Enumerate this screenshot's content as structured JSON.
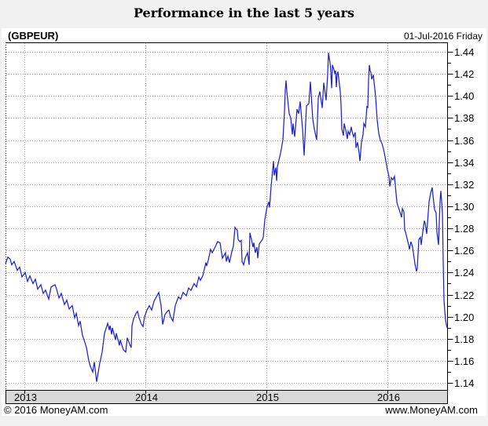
{
  "page": {
    "title": "Performance in the last 5 years"
  },
  "header": {
    "symbol": "(GBPEUR)",
    "date": "01-Jul-2016 Friday"
  },
  "footer": {
    "left": "© 2016 MoneyAM.com",
    "right": "www.MoneyAM.com"
  },
  "colors": {
    "line": "#2222cc",
    "grid": "#a0a0a0",
    "band_bg": "#d8d8d8",
    "frame": "#000000",
    "chart_bg": "#ffffff",
    "page_bg": "#f1f1f1",
    "text": "#000000"
  },
  "chart_data": {
    "type": "line",
    "title": "Performance in the last 5 years",
    "series_name": "GBPEUR exchange rate",
    "x_tick_labels": [
      "2013",
      "2014",
      "2015",
      "2016"
    ],
    "x_ticks": [
      2013,
      2014,
      2015,
      2016
    ],
    "y_ticks": [
      1.14,
      1.16,
      1.18,
      1.2,
      1.22,
      1.24,
      1.26,
      1.28,
      1.3,
      1.32,
      1.34,
      1.36,
      1.38,
      1.4,
      1.42,
      1.44
    ],
    "y_minor_step": 0.01,
    "x_range": [
      2012.8442,
      2016.5
    ],
    "y_range": [
      1.1337,
      1.4485
    ],
    "grid": "dotted",
    "y_axis_side": "right",
    "legend": "none",
    "points": [
      [
        2012.8442,
        1.248
      ],
      [
        2012.8636,
        1.254
      ],
      [
        2012.8831,
        1.252
      ],
      [
        2012.8961,
        1.247
      ],
      [
        2012.9156,
        1.25
      ],
      [
        2012.9416,
        1.242
      ],
      [
        2012.961,
        1.245
      ],
      [
        2012.9805,
        1.236
      ],
      [
        2013.0065,
        1.24
      ],
      [
        2013.026,
        1.232
      ],
      [
        2013.0455,
        1.237
      ],
      [
        2013.0714,
        1.23
      ],
      [
        2013.0909,
        1.234
      ],
      [
        2013.1104,
        1.225
      ],
      [
        2013.1364,
        1.229
      ],
      [
        2013.1558,
        1.221
      ],
      [
        2013.1753,
        1.224
      ],
      [
        2013.2013,
        1.216
      ],
      [
        2013.2208,
        1.227
      ],
      [
        2013.2532,
        1.229
      ],
      [
        2013.2662,
        1.225
      ],
      [
        2013.2857,
        1.217
      ],
      [
        2013.3052,
        1.221
      ],
      [
        2013.3312,
        1.211
      ],
      [
        2013.3506,
        1.215
      ],
      [
        2013.3701,
        1.207
      ],
      [
        2013.3961,
        1.21
      ],
      [
        2013.4156,
        1.199
      ],
      [
        2013.4286,
        1.203
      ],
      [
        2013.4481,
        1.192
      ],
      [
        2013.461,
        1.196
      ],
      [
        2013.4805,
        1.183
      ],
      [
        2013.4935,
        1.179
      ],
      [
        2013.513,
        1.172
      ],
      [
        2013.5325,
        1.16
      ],
      [
        2013.5455,
        1.155
      ],
      [
        2013.5649,
        1.15
      ],
      [
        2013.5779,
        1.159
      ],
      [
        2013.5974,
        1.141
      ],
      [
        2013.6104,
        1.15
      ],
      [
        2013.6234,
        1.158
      ],
      [
        2013.6429,
        1.168
      ],
      [
        2013.6623,
        1.185
      ],
      [
        2013.6883,
        1.194
      ],
      [
        2013.7013,
        1.188
      ],
      [
        2013.7078,
        1.192
      ],
      [
        2013.7208,
        1.184
      ],
      [
        2013.7273,
        1.19
      ],
      [
        2013.7532,
        1.179
      ],
      [
        2013.7597,
        1.185
      ],
      [
        2013.7857,
        1.174
      ],
      [
        2013.7922,
        1.179
      ],
      [
        2013.8182,
        1.17
      ],
      [
        2013.8377,
        1.168
      ],
      [
        2013.8506,
        1.181
      ],
      [
        2013.8701,
        1.175
      ],
      [
        2013.8831,
        1.172
      ],
      [
        2013.8896,
        1.192
      ],
      [
        2013.9026,
        1.198
      ],
      [
        2013.9221,
        1.203
      ],
      [
        2013.9351,
        1.205
      ],
      [
        2013.9481,
        1.199
      ],
      [
        2013.9675,
        1.193
      ],
      [
        2013.9805,
        1.191
      ],
      [
        2013.9935,
        1.2
      ],
      [
        2014.013,
        1.206
      ],
      [
        2014.0325,
        1.21
      ],
      [
        2014.0519,
        1.206
      ],
      [
        2014.0714,
        1.214
      ],
      [
        2014.0909,
        1.218
      ],
      [
        2014.1104,
        1.222
      ],
      [
        2014.1299,
        1.21
      ],
      [
        2014.1429,
        1.193
      ],
      [
        2014.1623,
        1.202
      ],
      [
        2014.1818,
        1.205
      ],
      [
        2014.1948,
        1.206
      ],
      [
        2014.2078,
        1.2
      ],
      [
        2014.2273,
        1.196
      ],
      [
        2014.2468,
        1.21
      ],
      [
        2014.2727,
        1.218
      ],
      [
        2014.2922,
        1.216
      ],
      [
        2014.3117,
        1.222
      ],
      [
        2014.3377,
        1.219
      ],
      [
        2014.3571,
        1.226
      ],
      [
        2014.3766,
        1.224
      ],
      [
        2014.4026,
        1.23
      ],
      [
        2014.4221,
        1.227
      ],
      [
        2014.4416,
        1.236
      ],
      [
        2014.4545,
        1.233
      ],
      [
        2014.474,
        1.237
      ],
      [
        2014.5,
        1.249
      ],
      [
        2014.5065,
        1.246
      ],
      [
        2014.5195,
        1.251
      ],
      [
        2014.539,
        1.261
      ],
      [
        2014.5519,
        1.258
      ],
      [
        2014.5714,
        1.262
      ],
      [
        2014.5974,
        1.268
      ],
      [
        2014.6169,
        1.267
      ],
      [
        2014.6364,
        1.253
      ],
      [
        2014.6623,
        1.258
      ],
      [
        2014.6688,
        1.25
      ],
      [
        2014.6818,
        1.255
      ],
      [
        2014.6948,
        1.249
      ],
      [
        2014.7143,
        1.259
      ],
      [
        2014.7273,
        1.264
      ],
      [
        2014.7403,
        1.281
      ],
      [
        2014.7597,
        1.278
      ],
      [
        2014.7662,
        1.27
      ],
      [
        2014.7792,
        1.268
      ],
      [
        2014.7922,
        1.269
      ],
      [
        2014.7987,
        1.25
      ],
      [
        2014.8117,
        1.247
      ],
      [
        2014.8247,
        1.253
      ],
      [
        2014.8442,
        1.258
      ],
      [
        2014.8571,
        1.247
      ],
      [
        2014.8636,
        1.276
      ],
      [
        2014.8766,
        1.27
      ],
      [
        2014.8896,
        1.263
      ],
      [
        2014.8961,
        1.267
      ],
      [
        2014.9091,
        1.258
      ],
      [
        2014.9221,
        1.263
      ],
      [
        2014.9286,
        1.253
      ],
      [
        2014.9416,
        1.266
      ],
      [
        2014.9545,
        1.268
      ],
      [
        2014.9675,
        1.27
      ],
      [
        2014.974,
        1.272
      ],
      [
        2014.9805,
        1.28
      ],
      [
        2014.987,
        1.288
      ],
      [
        2015.0065,
        1.3
      ],
      [
        2015.0195,
        1.304
      ],
      [
        2015.026,
        1.299
      ],
      [
        2015.039,
        1.318
      ],
      [
        2015.0584,
        1.341
      ],
      [
        2015.0649,
        1.328
      ],
      [
        2015.0779,
        1.335
      ],
      [
        2015.0844,
        1.323
      ],
      [
        2015.0909,
        1.336
      ],
      [
        2015.1039,
        1.342
      ],
      [
        2015.1169,
        1.348
      ],
      [
        2015.1364,
        1.36
      ],
      [
        2015.1494,
        1.386
      ],
      [
        2015.1558,
        1.405
      ],
      [
        2015.1623,
        1.414
      ],
      [
        2015.1688,
        1.404
      ],
      [
        2015.1883,
        1.384
      ],
      [
        2015.2013,
        1.38
      ],
      [
        2015.2143,
        1.365
      ],
      [
        2015.2208,
        1.375
      ],
      [
        2015.2338,
        1.363
      ],
      [
        2015.2532,
        1.388
      ],
      [
        2015.2662,
        1.384
      ],
      [
        2015.2792,
        1.395
      ],
      [
        2015.2987,
        1.37
      ],
      [
        2015.3117,
        1.346
      ],
      [
        2015.3312,
        1.391
      ],
      [
        2015.3506,
        1.393
      ],
      [
        2015.3636,
        1.413
      ],
      [
        2015.3831,
        1.379
      ],
      [
        2015.3961,
        1.37
      ],
      [
        2015.4156,
        1.36
      ],
      [
        2015.4286,
        1.398
      ],
      [
        2015.4416,
        1.404
      ],
      [
        2015.461,
        1.389
      ],
      [
        2015.474,
        1.412
      ],
      [
        2015.4935,
        1.396
      ],
      [
        2015.5065,
        1.42
      ],
      [
        2015.513,
        1.439
      ],
      [
        2015.526,
        1.43
      ],
      [
        2015.5325,
        1.421
      ],
      [
        2015.539,
        1.407
      ],
      [
        2015.5455,
        1.428
      ],
      [
        2015.5584,
        1.424
      ],
      [
        2015.5649,
        1.42
      ],
      [
        2015.5714,
        1.423
      ],
      [
        2015.5779,
        1.408
      ],
      [
        2015.5844,
        1.42
      ],
      [
        2015.5909,
        1.422
      ],
      [
        2015.6039,
        1.41
      ],
      [
        2015.6104,
        1.404
      ],
      [
        2015.6169,
        1.392
      ],
      [
        2015.6234,
        1.37
      ],
      [
        2015.6364,
        1.364
      ],
      [
        2015.6429,
        1.375
      ],
      [
        2015.6558,
        1.369
      ],
      [
        2015.6688,
        1.361
      ],
      [
        2015.6753,
        1.368
      ],
      [
        2015.6883,
        1.365
      ],
      [
        2015.7013,
        1.372
      ],
      [
        2015.7078,
        1.368
      ],
      [
        2015.7208,
        1.363
      ],
      [
        2015.7338,
        1.367
      ],
      [
        2015.7403,
        1.353
      ],
      [
        2015.7532,
        1.358
      ],
      [
        2015.7662,
        1.348
      ],
      [
        2015.7727,
        1.341
      ],
      [
        2015.7857,
        1.358
      ],
      [
        2015.7987,
        1.365
      ],
      [
        2015.8052,
        1.375
      ],
      [
        2015.8182,
        1.372
      ],
      [
        2015.8312,
        1.391
      ],
      [
        2015.8377,
        1.389
      ],
      [
        2015.8442,
        1.414
      ],
      [
        2015.8506,
        1.428
      ],
      [
        2015.8571,
        1.423
      ],
      [
        2015.8636,
        1.421
      ],
      [
        2015.8701,
        1.415
      ],
      [
        2015.8831,
        1.419
      ],
      [
        2015.8961,
        1.406
      ],
      [
        2015.9026,
        1.399
      ],
      [
        2015.9156,
        1.378
      ],
      [
        2015.9286,
        1.366
      ],
      [
        2015.9416,
        1.36
      ],
      [
        2015.9545,
        1.357
      ],
      [
        2015.9675,
        1.352
      ],
      [
        2015.9805,
        1.345
      ],
      [
        2016.0,
        1.333
      ],
      [
        2016.013,
        1.327
      ],
      [
        2016.0195,
        1.318
      ],
      [
        2016.0325,
        1.326
      ],
      [
        2016.0455,
        1.324
      ],
      [
        2016.0584,
        1.327
      ],
      [
        2016.0779,
        1.304
      ],
      [
        2016.0844,
        1.301
      ],
      [
        2016.0974,
        1.297
      ],
      [
        2016.1169,
        1.29
      ],
      [
        2016.1234,
        1.298
      ],
      [
        2016.1364,
        1.295
      ],
      [
        2016.1429,
        1.279
      ],
      [
        2016.1558,
        1.274
      ],
      [
        2016.1753,
        1.265
      ],
      [
        2016.1818,
        1.261
      ],
      [
        2016.1948,
        1.268
      ],
      [
        2016.2078,
        1.263
      ],
      [
        2016.2143,
        1.258
      ],
      [
        2016.2273,
        1.248
      ],
      [
        2016.2403,
        1.241
      ],
      [
        2016.2468,
        1.244
      ],
      [
        2016.2597,
        1.27
      ],
      [
        2016.2727,
        1.272
      ],
      [
        2016.2792,
        1.265
      ],
      [
        2016.2922,
        1.277
      ],
      [
        2016.3052,
        1.287
      ],
      [
        2016.3117,
        1.285
      ],
      [
        2016.3247,
        1.275
      ],
      [
        2016.3442,
        1.304
      ],
      [
        2016.3571,
        1.312
      ],
      [
        2016.3701,
        1.317
      ],
      [
        2016.3766,
        1.31
      ],
      [
        2016.3896,
        1.297
      ],
      [
        2016.4026,
        1.294
      ],
      [
        2016.4091,
        1.277
      ],
      [
        2016.4221,
        1.265
      ],
      [
        2016.4351,
        1.305
      ],
      [
        2016.4416,
        1.314
      ],
      [
        2016.4545,
        1.294
      ],
      [
        2016.461,
        1.25
      ],
      [
        2016.4675,
        1.215
      ],
      [
        2016.474,
        1.205
      ],
      [
        2016.4805,
        1.197
      ],
      [
        2016.487,
        1.193
      ],
      [
        2016.4935,
        1.19
      ]
    ]
  }
}
